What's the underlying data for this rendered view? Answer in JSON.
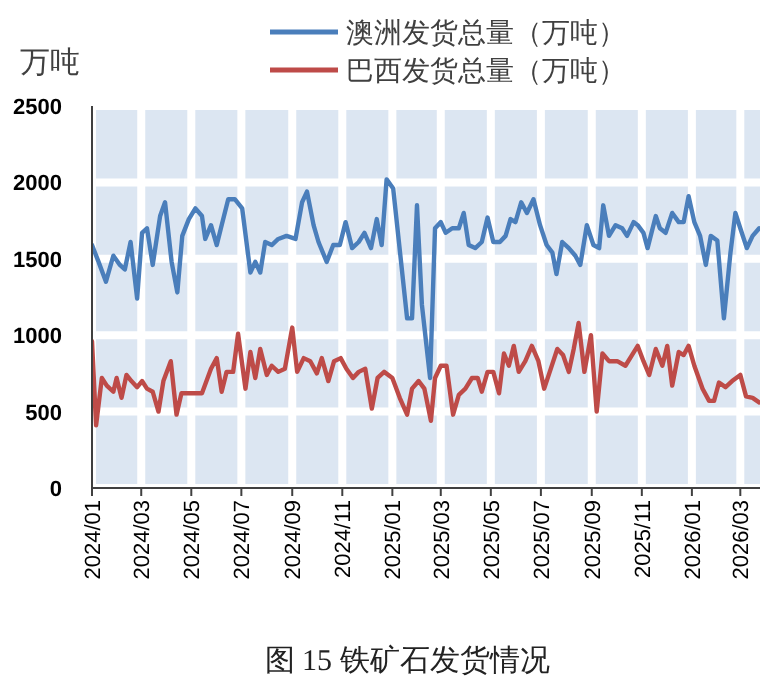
{
  "chart_data": {
    "type": "line",
    "title": "图 15 铁矿石发货情况",
    "ylabel": "万吨",
    "xlim": [
      "2024-01-01",
      "2026-03-25"
    ],
    "xticks": [
      {
        "value": "2024-01-01",
        "label": "2024/01"
      },
      {
        "value": "2024-03-01",
        "label": "2024/03"
      },
      {
        "value": "2024-05-01",
        "label": "2024/05"
      },
      {
        "value": "2024-07-01",
        "label": "2024/07"
      },
      {
        "value": "2024-09-01",
        "label": "2024/09"
      },
      {
        "value": "2024-11-01",
        "label": "2024/11"
      },
      {
        "value": "2025-01-01",
        "label": "2025/01"
      },
      {
        "value": "2025-03-01",
        "label": "2025/03"
      },
      {
        "value": "2025-05-01",
        "label": "2025/05"
      },
      {
        "value": "2025-07-01",
        "label": "2025/07"
      },
      {
        "value": "2025-09-01",
        "label": "2025/09"
      },
      {
        "value": "2025-11-01",
        "label": "2025/11"
      },
      {
        "value": "2026-01-01",
        "label": "2026/01"
      },
      {
        "value": "2026-03-01",
        "label": "2026/03"
      }
    ],
    "ylim": [
      0,
      2500
    ],
    "yticks": [
      0,
      500,
      1000,
      1500,
      2000,
      2500
    ],
    "grid": true,
    "legend": "top",
    "series": [
      {
        "name": "澳洲发货总量（万吨）",
        "color": "#4a7ebb",
        "x": [
          "2024-01-01",
          "2024-01-09",
          "2024-01-18",
          "2024-01-27",
          "2024-02-04",
          "2024-02-10",
          "2024-02-17",
          "2024-02-25",
          "2024-03-02",
          "2024-03-08",
          "2024-03-15",
          "2024-03-24",
          "2024-03-30",
          "2024-04-07",
          "2024-04-14",
          "2024-04-20",
          "2024-04-28",
          "2024-05-06",
          "2024-05-14",
          "2024-05-18",
          "2024-05-25",
          "2024-06-01",
          "2024-06-07",
          "2024-06-15",
          "2024-06-23",
          "2024-07-02",
          "2024-07-12",
          "2024-07-18",
          "2024-07-24",
          "2024-07-30",
          "2024-08-07",
          "2024-08-15",
          "2024-08-25",
          "2024-09-05",
          "2024-09-13",
          "2024-09-19",
          "2024-09-27",
          "2024-10-03",
          "2024-10-13",
          "2024-10-21",
          "2024-10-29",
          "2024-11-05",
          "2024-11-13",
          "2024-11-21",
          "2024-11-28",
          "2024-12-06",
          "2024-12-13",
          "2024-12-19",
          "2024-12-25",
          "2025-01-02",
          "2025-01-09",
          "2025-01-19",
          "2025-01-25",
          "2025-01-31",
          "2025-02-06",
          "2025-02-16",
          "2025-02-22",
          "2025-03-01",
          "2025-03-07",
          "2025-03-15",
          "2025-03-23",
          "2025-03-29",
          "2025-04-04",
          "2025-04-12",
          "2025-04-20",
          "2025-04-27",
          "2025-05-04",
          "2025-05-12",
          "2025-05-19",
          "2025-05-25",
          "2025-05-31",
          "2025-06-07",
          "2025-06-14",
          "2025-06-22",
          "2025-06-30",
          "2025-07-08",
          "2025-07-15",
          "2025-07-20",
          "2025-07-27",
          "2025-08-04",
          "2025-08-12",
          "2025-08-18",
          "2025-08-26",
          "2025-09-03",
          "2025-09-10",
          "2025-09-15",
          "2025-09-22",
          "2025-09-30",
          "2025-10-08",
          "2025-10-14",
          "2025-10-22",
          "2025-10-27",
          "2025-11-03",
          "2025-11-08",
          "2025-11-18",
          "2025-11-23",
          "2025-11-30",
          "2025-12-08",
          "2025-12-16",
          "2025-12-22",
          "2025-12-28",
          "2026-01-04",
          "2026-01-11",
          "2026-01-18",
          "2026-01-24",
          "2026-02-01",
          "2026-02-09",
          "2026-02-17",
          "2026-02-23",
          "2026-03-01",
          "2026-03-09",
          "2026-03-16",
          "2026-03-24"
        ],
        "values": [
          1590,
          1480,
          1350,
          1520,
          1460,
          1430,
          1610,
          1240,
          1670,
          1700,
          1460,
          1780,
          1870,
          1480,
          1280,
          1650,
          1760,
          1830,
          1780,
          1630,
          1720,
          1590,
          1720,
          1890,
          1890,
          1830,
          1410,
          1480,
          1410,
          1610,
          1590,
          1630,
          1650,
          1630,
          1870,
          1940,
          1720,
          1610,
          1480,
          1590,
          1590,
          1740,
          1570,
          1610,
          1670,
          1570,
          1760,
          1590,
          2020,
          1960,
          1610,
          1110,
          1110,
          1850,
          1200,
          720,
          1700,
          1740,
          1670,
          1700,
          1700,
          1800,
          1590,
          1570,
          1610,
          1770,
          1610,
          1610,
          1650,
          1760,
          1740,
          1870,
          1800,
          1890,
          1720,
          1590,
          1540,
          1400,
          1610,
          1570,
          1520,
          1460,
          1720,
          1590,
          1570,
          1850,
          1650,
          1720,
          1700,
          1650,
          1740,
          1720,
          1670,
          1570,
          1780,
          1700,
          1670,
          1800,
          1740,
          1740,
          1910,
          1740,
          1650,
          1460,
          1650,
          1620,
          1110,
          1540,
          1800,
          1700,
          1570,
          1650,
          1700
        ]
      },
      {
        "name": "巴西发货总量（万吨）",
        "color": "#be4b48",
        "x": [
          "2024-01-01",
          "2024-01-06",
          "2024-01-13",
          "2024-01-19",
          "2024-01-27",
          "2024-01-31",
          "2024-02-06",
          "2024-02-12",
          "2024-02-18",
          "2024-02-25",
          "2024-03-02",
          "2024-03-08",
          "2024-03-15",
          "2024-03-22",
          "2024-03-28",
          "2024-04-06",
          "2024-04-13",
          "2024-04-19",
          "2024-05-02",
          "2024-05-14",
          "2024-05-25",
          "2024-06-01",
          "2024-06-07",
          "2024-06-13",
          "2024-06-21",
          "2024-06-27",
          "2024-07-06",
          "2024-07-12",
          "2024-07-18",
          "2024-07-24",
          "2024-08-01",
          "2024-08-07",
          "2024-08-15",
          "2024-08-23",
          "2024-09-01",
          "2024-09-07",
          "2024-09-15",
          "2024-09-23",
          "2024-10-01",
          "2024-10-07",
          "2024-10-15",
          "2024-10-22",
          "2024-10-30",
          "2024-11-06",
          "2024-11-14",
          "2024-11-21",
          "2024-11-29",
          "2024-12-07",
          "2024-12-14",
          "2024-12-22",
          "2025-01-01",
          "2025-01-10",
          "2025-01-19",
          "2025-01-25",
          "2025-02-02",
          "2025-02-09",
          "2025-02-17",
          "2025-02-22",
          "2025-03-01",
          "2025-03-08",
          "2025-03-16",
          "2025-03-23",
          "2025-03-31",
          "2025-04-08",
          "2025-04-15",
          "2025-04-20",
          "2025-04-27",
          "2025-05-04",
          "2025-05-11",
          "2025-05-17",
          "2025-05-23",
          "2025-05-29",
          "2025-06-04",
          "2025-06-12",
          "2025-06-20",
          "2025-06-28",
          "2025-07-05",
          "2025-07-13",
          "2025-07-21",
          "2025-07-28",
          "2025-08-04",
          "2025-08-10",
          "2025-08-16",
          "2025-08-23",
          "2025-08-31",
          "2025-09-07",
          "2025-09-14",
          "2025-09-22",
          "2025-10-02",
          "2025-10-12",
          "2025-10-20",
          "2025-10-27",
          "2025-11-03",
          "2025-11-10",
          "2025-11-18",
          "2025-11-26",
          "2025-12-02",
          "2025-12-08",
          "2025-12-16",
          "2025-12-22",
          "2025-12-28",
          "2026-01-04",
          "2026-01-14",
          "2026-01-22",
          "2026-01-28",
          "2026-02-03",
          "2026-02-11",
          "2026-02-19",
          "2026-03-01",
          "2026-03-08",
          "2026-03-16",
          "2026-03-24"
        ],
        "values": [
          960,
          410,
          720,
          670,
          630,
          720,
          590,
          740,
          700,
          660,
          700,
          650,
          630,
          500,
          700,
          830,
          480,
          620,
          620,
          620,
          780,
          850,
          630,
          760,
          760,
          1010,
          650,
          890,
          720,
          910,
          740,
          800,
          760,
          780,
          1050,
          760,
          850,
          830,
          750,
          850,
          700,
          830,
          850,
          780,
          720,
          760,
          780,
          520,
          720,
          760,
          720,
          590,
          480,
          650,
          700,
          650,
          440,
          720,
          800,
          800,
          480,
          610,
          650,
          720,
          720,
          630,
          760,
          760,
          620,
          880,
          800,
          930,
          760,
          830,
          930,
          830,
          650,
          780,
          910,
          870,
          760,
          910,
          1080,
          760,
          1000,
          500,
          880,
          830,
          830,
          800,
          870,
          930,
          830,
          740,
          910,
          800,
          930,
          670,
          890,
          870,
          930,
          800,
          650,
          570,
          570,
          690,
          660,
          700,
          740,
          600,
          590,
          560
        ]
      }
    ]
  }
}
